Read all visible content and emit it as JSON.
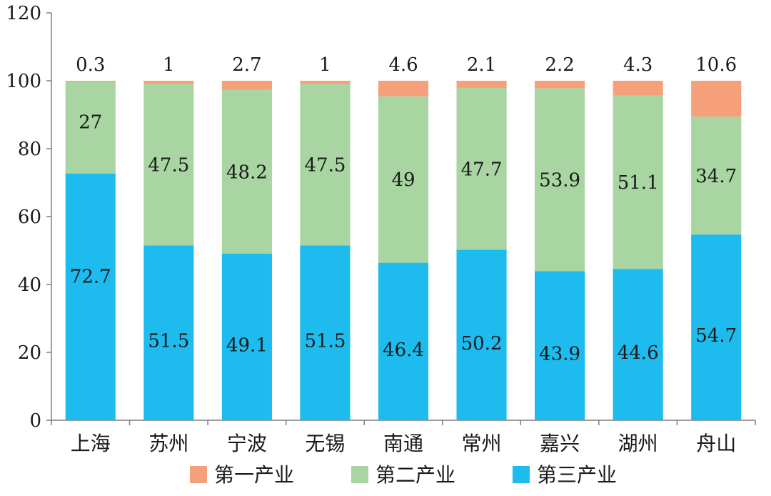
{
  "chart_data": {
    "type": "bar",
    "stacked": true,
    "categories": [
      "上海",
      "苏州",
      "宁波",
      "无锡",
      "南通",
      "常州",
      "嘉兴",
      "湖州",
      "舟山"
    ],
    "series": [
      {
        "name": "第三产业",
        "color": "#1dbbee",
        "values": [
          72.7,
          51.5,
          49.1,
          51.5,
          46.4,
          50.2,
          43.9,
          44.6,
          54.7
        ]
      },
      {
        "name": "第二产业",
        "color": "#a8d5a2",
        "values": [
          27,
          47.5,
          48.2,
          47.5,
          49,
          47.7,
          53.9,
          51.1,
          34.7
        ]
      },
      {
        "name": "第一产业",
        "color": "#f5a07a",
        "values": [
          0.3,
          1,
          2.7,
          1,
          4.6,
          2.1,
          2.2,
          4.3,
          10.6
        ]
      }
    ],
    "value_labels": [
      [
        "72.7",
        "51.5",
        "49.1",
        "51.5",
        "46.4",
        "50.2",
        "43.9",
        "44.6",
        "54.7"
      ],
      [
        "27",
        "47.5",
        "48.2",
        "47.5",
        "49",
        "47.7",
        "53.9",
        "51.1",
        "34.7"
      ],
      [
        "0.3",
        "1",
        "2.7",
        "1",
        "4.6",
        "2.1",
        "2.2",
        "4.3",
        "10.6"
      ]
    ],
    "legend_order": [
      "第一产业",
      "第二产业",
      "第三产业"
    ],
    "legend_placement": "bottom",
    "ylim": [
      0,
      120
    ],
    "yticks": [
      0,
      20,
      40,
      60,
      80,
      100,
      120
    ],
    "grid": false,
    "title": "",
    "xlabel": "",
    "ylabel": ""
  }
}
